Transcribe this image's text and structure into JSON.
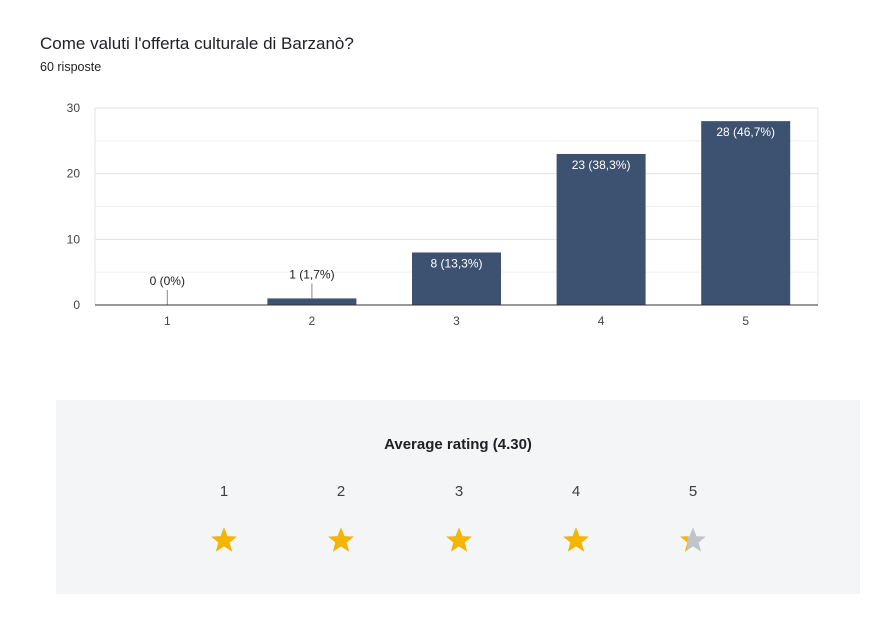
{
  "question": "Come valuti l'offerta culturale di Barzanò?",
  "responses": "60 risposte",
  "chart_data": {
    "type": "bar",
    "categories": [
      "1",
      "2",
      "3",
      "4",
      "5"
    ],
    "values": [
      0,
      1,
      8,
      23,
      28
    ],
    "data_labels": [
      "0 (0%)",
      "1 (1,7%)",
      "8 (13,3%)",
      "23 (38,3%)",
      "28 (46,7%)"
    ],
    "yticks": [
      0,
      10,
      20,
      30
    ],
    "ylim": [
      0,
      30
    ],
    "grid": true,
    "bar_color": "#3d5170"
  },
  "rating": {
    "title": "Average rating (4.30)",
    "value": 4.3,
    "labels": [
      "1",
      "2",
      "3",
      "4",
      "5"
    ],
    "star_color": "#f4b400",
    "empty_star_color": "#c0c4c8"
  }
}
